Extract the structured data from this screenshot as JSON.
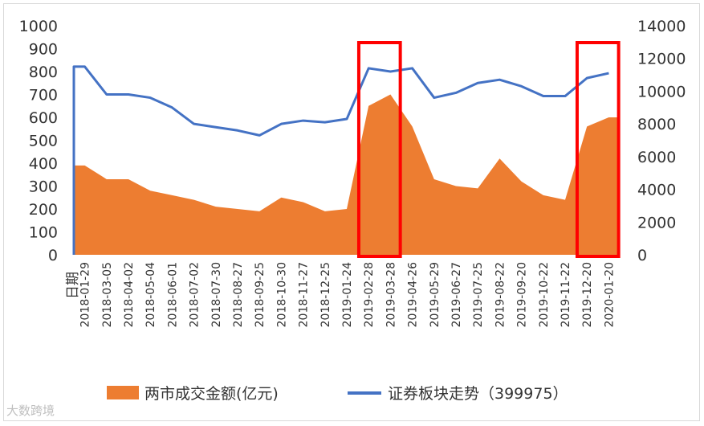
{
  "chart_data": {
    "type": "area+line",
    "x_axis_title": "日期",
    "categories": [
      "2018-01-29",
      "2018-03-05",
      "2018-04-02",
      "2018-05-04",
      "2018-06-01",
      "2018-07-02",
      "2018-07-30",
      "2018-08-27",
      "2018-09-25",
      "2018-10-30",
      "2018-11-27",
      "2018-12-25",
      "2019-01-24",
      "2019-02-28",
      "2019-03-28",
      "2019-04-26",
      "2019-05-29",
      "2019-06-27",
      "2019-07-25",
      "2019-08-22",
      "2019-09-20",
      "2019-10-22",
      "2019-11-22",
      "2019-12-20",
      "2020-01-20"
    ],
    "y_left": {
      "ticks": [
        0,
        100,
        200,
        300,
        400,
        500,
        600,
        700,
        800,
        900,
        1000
      ],
      "range": [
        0,
        1000
      ]
    },
    "y_right": {
      "ticks": [
        0,
        2000,
        4000,
        6000,
        8000,
        10000,
        12000,
        14000
      ],
      "range": [
        0,
        14000
      ]
    },
    "series": [
      {
        "name": "两市成交金额(亿元)",
        "type": "area",
        "axis": "left",
        "color": "#ed7d31",
        "values": [
          390,
          330,
          330,
          280,
          260,
          240,
          210,
          200,
          190,
          250,
          230,
          190,
          200,
          650,
          700,
          560,
          330,
          300,
          290,
          420,
          320,
          260,
          240,
          560,
          600
        ]
      },
      {
        "name": "证券板块走势（399975）",
        "type": "line",
        "axis": "right",
        "color": "#4472c4",
        "values": [
          11500,
          9800,
          9800,
          9600,
          9000,
          8000,
          7800,
          7600,
          7300,
          8000,
          8200,
          8100,
          8300,
          11400,
          11200,
          11400,
          9600,
          9900,
          10500,
          10700,
          10300,
          9700,
          9700,
          10800,
          11100
        ]
      }
    ],
    "highlight_boxes": [
      {
        "color": "#ff0000",
        "from": "2019-02-28",
        "to": "2019-03-28"
      },
      {
        "color": "#ff0000",
        "from": "2019-12-20",
        "to": "2020-01-20"
      }
    ],
    "legend": {
      "position": "bottom"
    },
    "grid": false
  },
  "watermark": "大数跨境"
}
